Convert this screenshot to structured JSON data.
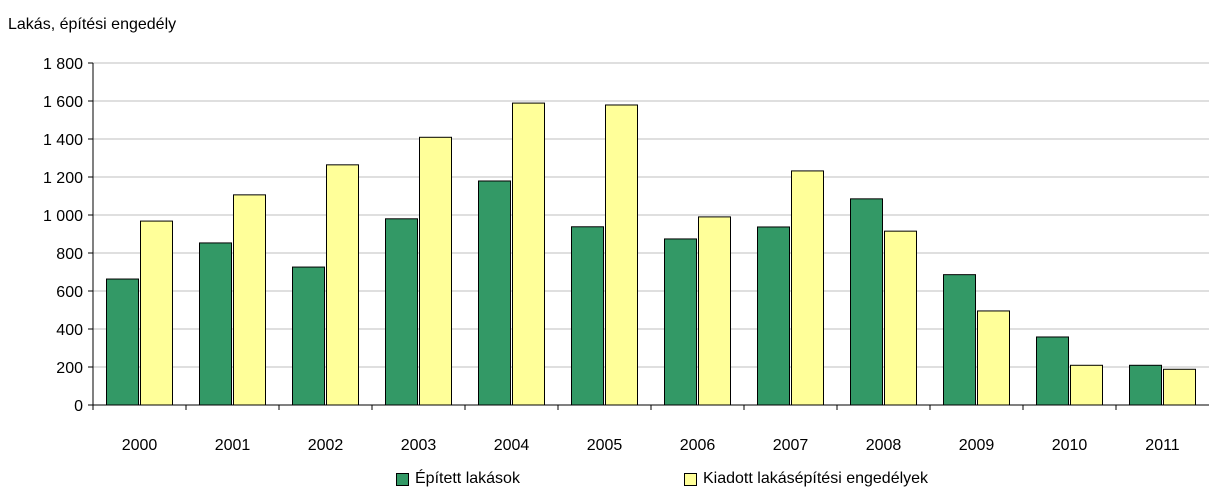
{
  "chart_data": {
    "type": "bar",
    "title": "",
    "ylabel": "Lakás, építési engedély",
    "xlabel": "",
    "ylim": [
      0,
      1800
    ],
    "yticks": [
      0,
      200,
      400,
      600,
      800,
      1000,
      1200,
      1400,
      1600,
      1800
    ],
    "ytick_labels": [
      "0",
      "200",
      "400",
      "600",
      "800",
      "1 000",
      "1 200",
      "1 400",
      "1 600",
      "1 800"
    ],
    "grid": true,
    "legend_position": "bottom",
    "categories": [
      "2000",
      "2001",
      "2002",
      "2003",
      "2004",
      "2005",
      "2006",
      "2007",
      "2008",
      "2009",
      "2010",
      "2011"
    ],
    "series": [
      {
        "name": "Épített lakások",
        "color": "#339966",
        "values": [
          663,
          853,
          726,
          980,
          1179,
          938,
          874,
          937,
          1085,
          686,
          358,
          209
        ]
      },
      {
        "name": "Kiadott lakásépítési engedélyek",
        "color": "#FFFF99",
        "values": [
          968,
          1106,
          1264,
          1409,
          1589,
          1579,
          990,
          1232,
          915,
          495,
          209,
          188
        ]
      }
    ]
  }
}
